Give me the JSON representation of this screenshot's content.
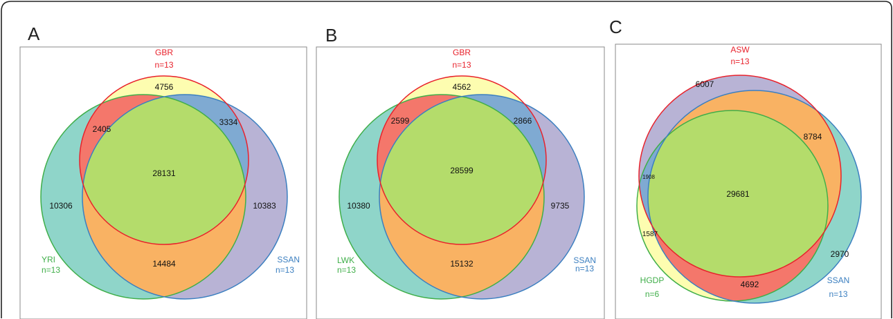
{
  "panels": [
    {
      "letter": "A",
      "sets": [
        {
          "name": "GBR",
          "n": "n=13",
          "color": "#e8212b"
        },
        {
          "name": "YRI",
          "n": "n=13",
          "color": "#3fae49"
        },
        {
          "name": "SSAN",
          "n": "n=13",
          "color": "#3b7fc0"
        }
      ],
      "regions": {
        "top_only": "4756",
        "top_left": "2405",
        "top_right": "3334",
        "center": "28131",
        "left_only": "10306",
        "right_only": "10383",
        "bottom": "14484"
      }
    },
    {
      "letter": "B",
      "sets": [
        {
          "name": "GBR",
          "n": "n=13",
          "color": "#e8212b"
        },
        {
          "name": "LWK",
          "n": "n=13",
          "color": "#3fae49"
        },
        {
          "name": "SSAN",
          "n": "n=13",
          "color": "#3b7fc0"
        }
      ],
      "regions": {
        "top_only": "4562",
        "top_left": "2599",
        "top_right": "2866",
        "center": "28599",
        "left_only": "10380",
        "right_only": "9735",
        "bottom": "15132"
      }
    },
    {
      "letter": "C",
      "sets": [
        {
          "name": "ASW",
          "n": "n=13",
          "color": "#e8212b"
        },
        {
          "name": "HGDP",
          "n": "n=6",
          "color": "#3fae49"
        },
        {
          "name": "SSAN",
          "n": "n=13",
          "color": "#3b7fc0"
        }
      ],
      "regions": {
        "asw_only": "6007",
        "asw_ssan": "8784",
        "asw_hgdp": "1908",
        "center": "29681",
        "hgdp_only": "1587",
        "ssan_only": "2970",
        "hgdp_ssan_only": "4692"
      }
    }
  ],
  "colors": {
    "yellow": "#fdfdb0",
    "red_fill": "#f4776b",
    "blue_fill": "#7faad2",
    "teal": "#8fd5c9",
    "lavender": "#b8b3d5",
    "orange": "#f9b263",
    "green": "#b4dc6b"
  }
}
